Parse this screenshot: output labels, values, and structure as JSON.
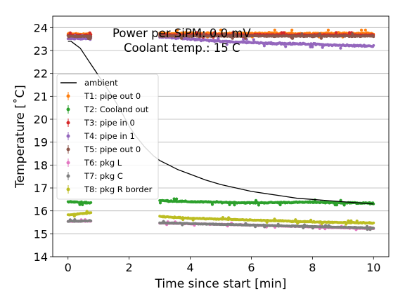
{
  "chart_data": {
    "type": "scatter",
    "title": "",
    "xlabel": "Time since start [min]",
    "ylabel": "Temperature [˚C]",
    "xlim": [
      -0.5,
      10.5
    ],
    "ylim": [
      14,
      24.5
    ],
    "xticks": [
      "0",
      "2",
      "4",
      "6",
      "8",
      "10"
    ],
    "yticks": [
      "14",
      "15",
      "16",
      "17",
      "18",
      "19",
      "20",
      "21",
      "22",
      "23",
      "24"
    ],
    "grid": "horizontal",
    "legend_position": "upper-left",
    "annotations": [
      "Power per SiPM: 0.0 mV",
      "Coolant temp.: 15 C"
    ],
    "line_series": [
      {
        "name": "ambient",
        "color": "#000000",
        "x": [
          0.0,
          0.1,
          0.2,
          0.3,
          0.4,
          0.5,
          0.6,
          0.7,
          0.8,
          1.0,
          1.2,
          1.5,
          1.8,
          2.0,
          2.2,
          2.5,
          2.8,
          3.0,
          3.3,
          3.6,
          4.0,
          4.5,
          5.0,
          5.5,
          6.0,
          6.5,
          7.0,
          7.5,
          8.0,
          8.5,
          9.0,
          9.5,
          10.0
        ],
        "y": [
          23.4,
          23.4,
          23.3,
          23.2,
          23.1,
          22.9,
          22.7,
          22.5,
          22.3,
          21.9,
          21.5,
          20.9,
          20.2,
          19.7,
          19.3,
          18.8,
          18.4,
          18.2,
          18.0,
          17.8,
          17.6,
          17.35,
          17.15,
          17.0,
          16.85,
          16.75,
          16.65,
          16.55,
          16.5,
          16.45,
          16.4,
          16.35,
          16.3
        ]
      }
    ],
    "scatter_series": [
      {
        "name": "T1: pipe out 0",
        "color": "#ff7f0e",
        "segments": [
          {
            "x": [
              0.0,
              0.75
            ],
            "y": [
              23.72,
              23.72
            ]
          },
          {
            "x": [
              3.0,
              10.0
            ],
            "y": [
              23.74,
              23.74
            ]
          }
        ],
        "noise": 0.06
      },
      {
        "name": "T2: Cooland out",
        "color": "#2ca02c",
        "segments": [
          {
            "x": [
              0.0,
              0.75
            ],
            "y": [
              16.4,
              16.35
            ]
          },
          {
            "x": [
              3.0,
              4.0,
              6.0,
              8.0,
              10.0
            ],
            "y": [
              16.45,
              16.4,
              16.35,
              16.38,
              16.33
            ]
          }
        ],
        "noise": 0.04
      },
      {
        "name": "T3: pipe in 0",
        "color": "#d62728",
        "segments": [
          {
            "x": [
              0.0,
              0.75
            ],
            "y": [
              23.67,
              23.67
            ]
          },
          {
            "x": [
              3.0,
              10.0
            ],
            "y": [
              23.68,
              23.68
            ]
          }
        ],
        "noise": 0.04
      },
      {
        "name": "T4: pipe in 1",
        "color": "#9467bd",
        "segments": [
          {
            "x": [
              0.0,
              0.75
            ],
            "y": [
              23.52,
              23.52
            ]
          },
          {
            "x": [
              3.0,
              4.0,
              5.0,
              6.0,
              7.0,
              8.0,
              9.0,
              10.0
            ],
            "y": [
              23.6,
              23.5,
              23.4,
              23.35,
              23.3,
              23.28,
              23.22,
              23.2
            ]
          }
        ],
        "noise": 0.05
      },
      {
        "name": "T5: pipe out 0",
        "color": "#8c564b",
        "segments": [
          {
            "x": [
              0.0,
              0.75
            ],
            "y": [
              23.62,
              23.62
            ]
          },
          {
            "x": [
              3.0,
              10.0
            ],
            "y": [
              23.63,
              23.63
            ]
          }
        ],
        "noise": 0.04
      },
      {
        "name": "T6: pkg L",
        "color": "#e377c2",
        "segments": [
          {
            "x": [
              0.0,
              0.75
            ],
            "y": [
              15.54,
              15.56
            ]
          },
          {
            "x": [
              3.0,
              6.0,
              10.0
            ],
            "y": [
              15.47,
              15.38,
              15.22
            ]
          }
        ],
        "noise": 0.025
      },
      {
        "name": "T7: pkg C",
        "color": "#7f7f7f",
        "segments": [
          {
            "x": [
              0.0,
              0.75
            ],
            "y": [
              15.55,
              15.57
            ]
          },
          {
            "x": [
              3.0,
              6.0,
              10.0
            ],
            "y": [
              15.48,
              15.38,
              15.25
            ]
          }
        ],
        "noise": 0.025
      },
      {
        "name": "T8: pkg R border",
        "color": "#bcbd22",
        "segments": [
          {
            "x": [
              0.0,
              0.75
            ],
            "y": [
              15.82,
              15.92
            ]
          },
          {
            "x": [
              3.0,
              4.0,
              6.0,
              8.0,
              10.0
            ],
            "y": [
              15.75,
              15.68,
              15.6,
              15.52,
              15.47
            ]
          }
        ],
        "noise": 0.03
      }
    ]
  }
}
